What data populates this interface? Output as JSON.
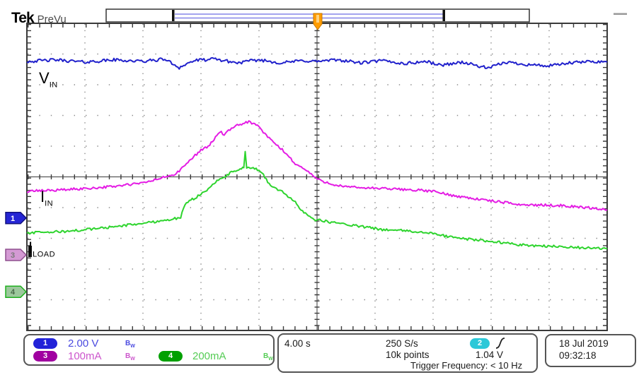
{
  "header": {
    "brand": "Tek",
    "mode": "PreVu"
  },
  "wave_labels": [
    {
      "main": "V",
      "sub": "IN"
    },
    {
      "main": "I",
      "sub": "IN"
    },
    {
      "main": "I",
      "sub": "LOAD"
    }
  ],
  "bw_icon": {
    "main": "B",
    "sub": "W"
  },
  "scope": {
    "channels": [
      {
        "num": "1",
        "scale": "2.00 V",
        "badge_color": "#2222d8",
        "value_color": "#4a4ae0"
      },
      {
        "num": "3",
        "scale": "100mA",
        "badge_color": "#a000a0",
        "value_color": "#cc55cc"
      },
      {
        "num": "4",
        "scale": "200mA",
        "badge_color": "#00a000",
        "value_color": "#55cc55"
      }
    ],
    "timebase": "4.00 s",
    "sample_rate": "250 S/s",
    "record_length": "10k points",
    "trigger": {
      "source_num": "2",
      "badge_color": "#2cc8d8",
      "level": "1.04 V",
      "slope": "rising"
    },
    "trigger_frequency": "Trigger Frequency: < 10 Hz",
    "date": "18 Jul  2019",
    "time": "09:32:18"
  },
  "chart_data": {
    "type": "line",
    "title": "Tek PreVu oscilloscope capture",
    "x_axis": {
      "units": "s",
      "seconds_per_div": 4,
      "divisions": 10,
      "range": [
        -20,
        20
      ],
      "trigger_at": 0
    },
    "y_axis": {
      "divisions": 10
    },
    "grid": "dotted",
    "legend_position": "bottom-left-readout",
    "series": [
      {
        "name": "V_IN",
        "channel": "1",
        "units": "V",
        "per_div": 2.0,
        "zero_div_from_top": 6.34,
        "color": "#2121cc",
        "noise": 0.1,
        "marker": {
          "fill": "#2525d5",
          "stroke": "#10107e",
          "num": "#ffffff"
        },
        "points": [
          [
            -20,
            10.2
          ],
          [
            -18,
            10.3
          ],
          [
            -16,
            10.15
          ],
          [
            -14,
            10.3
          ],
          [
            -12,
            10.2
          ],
          [
            -10.5,
            10.35
          ],
          [
            -9.5,
            9.8
          ],
          [
            -8.5,
            10.25
          ],
          [
            -7,
            10.35
          ],
          [
            -5.5,
            10.1
          ],
          [
            -4,
            10.3
          ],
          [
            -2.5,
            10.1
          ],
          [
            -1,
            10.25
          ],
          [
            0,
            10.2
          ],
          [
            1.5,
            10.3
          ],
          [
            3,
            10.1
          ],
          [
            4.5,
            10.25
          ],
          [
            6,
            10.05
          ],
          [
            7.5,
            10.2
          ],
          [
            8.5,
            9.95
          ],
          [
            10,
            10.15
          ],
          [
            11.8,
            9.75
          ],
          [
            13,
            10.15
          ],
          [
            14.5,
            10.0
          ],
          [
            16,
            9.9
          ],
          [
            17.5,
            10.1
          ],
          [
            19,
            10.2
          ],
          [
            20,
            10.15
          ]
        ]
      },
      {
        "name": "I_IN",
        "channel": "3",
        "units": "mA",
        "per_div": 100,
        "zero_div_from_top": 7.54,
        "color": "#e41ce4",
        "noise": 4,
        "marker": {
          "fill": "#d49ad4",
          "stroke": "#8f4f8f",
          "num": "#787878"
        },
        "points": [
          [
            -20,
            207
          ],
          [
            -18,
            211
          ],
          [
            -16,
            216
          ],
          [
            -14,
            223
          ],
          [
            -12,
            234
          ],
          [
            -10.9,
            248
          ],
          [
            -9.7,
            264
          ],
          [
            -8.8,
            306
          ],
          [
            -8,
            342
          ],
          [
            -7.5,
            352
          ],
          [
            -6.7,
            402
          ],
          [
            -6.4,
            391
          ],
          [
            -6,
            407
          ],
          [
            -5.5,
            421
          ],
          [
            -5,
            430
          ],
          [
            -4.7,
            434
          ],
          [
            -4.3,
            425
          ],
          [
            -4,
            418
          ],
          [
            -3.6,
            393
          ],
          [
            -3.2,
            375
          ],
          [
            -2.3,
            338
          ],
          [
            -1.5,
            297
          ],
          [
            -0.7,
            274
          ],
          [
            0.1,
            244
          ],
          [
            1.1,
            230
          ],
          [
            2,
            221
          ],
          [
            4.5,
            216
          ],
          [
            6.9,
            211
          ],
          [
            8,
            207
          ],
          [
            9.4,
            193
          ],
          [
            11.8,
            177
          ],
          [
            14.2,
            163
          ],
          [
            16.7,
            161
          ],
          [
            19.1,
            152
          ],
          [
            20,
            147
          ]
        ]
      },
      {
        "name": "I_LOAD",
        "channel": "4",
        "units": "mA",
        "per_div": 200,
        "zero_div_from_top": 8.74,
        "color": "#2ed42e",
        "noise": 8,
        "marker": {
          "fill": "#9cc89c",
          "stroke": "#1faf1f",
          "num": "#4a6a4a"
        },
        "points": [
          [
            -20,
            382
          ],
          [
            -17,
            395
          ],
          [
            -14.5,
            418
          ],
          [
            -12,
            446
          ],
          [
            -10.6,
            464
          ],
          [
            -9.4,
            483
          ],
          [
            -9.2,
            543
          ],
          [
            -8.9,
            589
          ],
          [
            -8.4,
            611
          ],
          [
            -7.7,
            657
          ],
          [
            -7,
            713
          ],
          [
            -6.2,
            759
          ],
          [
            -5.8,
            782
          ],
          [
            -5.3,
            800
          ],
          [
            -5.05,
            806
          ],
          [
            -4.95,
            911
          ],
          [
            -4.85,
            803
          ],
          [
            -4.5,
            805
          ],
          [
            -4,
            791
          ],
          [
            -3.7,
            759
          ],
          [
            -3.3,
            704
          ],
          [
            -2.8,
            667
          ],
          [
            -2.3,
            648
          ],
          [
            -2,
            612
          ],
          [
            -1.5,
            589
          ],
          [
            -1.1,
            533
          ],
          [
            -0.6,
            497
          ],
          [
            -0.1,
            469
          ],
          [
            1.1,
            451
          ],
          [
            2.5,
            432
          ],
          [
            4.5,
            405
          ],
          [
            6.4,
            395
          ],
          [
            8.1,
            377
          ],
          [
            9.6,
            349
          ],
          [
            11.8,
            331
          ],
          [
            14.2,
            304
          ],
          [
            16.7,
            294
          ],
          [
            18.6,
            285
          ],
          [
            20,
            280
          ]
        ]
      }
    ]
  }
}
